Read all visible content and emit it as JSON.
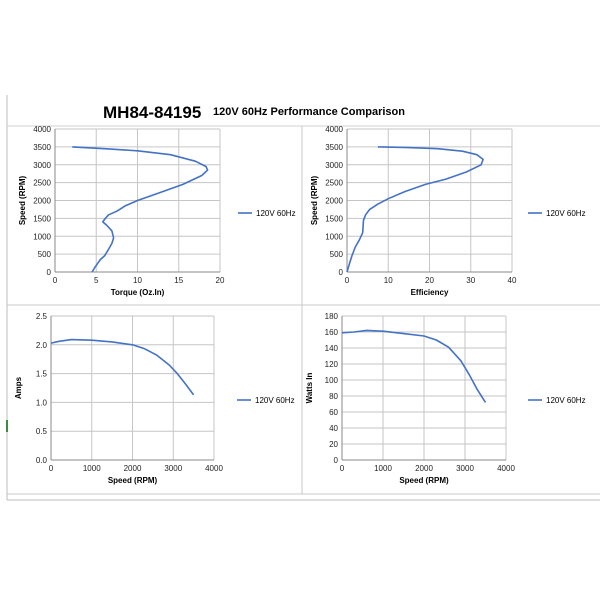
{
  "header": {
    "model": "MH84-84195",
    "subtitle": "120V 60Hz Performance Comparison"
  },
  "chart_data": [
    {
      "type": "line",
      "xlabel": "Torque (Oz.In)",
      "ylabel": "Speed (RPM)",
      "xlim": [
        0,
        20
      ],
      "ylim": [
        0,
        4000
      ],
      "xticks": [
        0,
        5,
        10,
        15,
        20
      ],
      "yticks": [
        0,
        500,
        1000,
        1500,
        2000,
        2500,
        3000,
        3500,
        4000
      ],
      "grid": true,
      "legend_position": "right",
      "series": [
        {
          "name": "120V 60Hz",
          "color": "#4472c4",
          "x": [
            2.1,
            6.0,
            10.0,
            14.0,
            17.0,
            18.3,
            18.5,
            17.8,
            15.5,
            12.5,
            10.0,
            8.5,
            7.5,
            6.5,
            6.1,
            5.8,
            6.3,
            6.9,
            7.1,
            6.9,
            6.4,
            6.0,
            5.5,
            5.2,
            4.9,
            4.5
          ],
          "y": [
            3500,
            3450,
            3390,
            3280,
            3100,
            2950,
            2850,
            2700,
            2450,
            2200,
            2000,
            1850,
            1700,
            1600,
            1500,
            1400,
            1300,
            1150,
            950,
            800,
            600,
            450,
            350,
            250,
            150,
            0
          ]
        }
      ]
    },
    {
      "type": "line",
      "xlabel": "Efficiency",
      "ylabel": "Speed (RPM)",
      "xlim": [
        0,
        40
      ],
      "ylim": [
        0,
        4000
      ],
      "xticks": [
        0,
        10,
        20,
        30,
        40
      ],
      "yticks": [
        0,
        500,
        1000,
        1500,
        2000,
        2500,
        3000,
        3500,
        4000
      ],
      "grid": true,
      "legend_position": "right",
      "series": [
        {
          "name": "120V 60Hz",
          "color": "#4472c4",
          "x": [
            7.5,
            15,
            22,
            28,
            31.5,
            33,
            32.5,
            29,
            24,
            19,
            14,
            10,
            7.5,
            5.5,
            4.5,
            4.0,
            3.8,
            3.0,
            2.0,
            1.2,
            0.5,
            0
          ],
          "y": [
            3500,
            3480,
            3450,
            3380,
            3280,
            3150,
            3000,
            2800,
            2600,
            2450,
            2250,
            2050,
            1900,
            1750,
            1600,
            1450,
            1100,
            900,
            700,
            450,
            200,
            0
          ]
        }
      ]
    },
    {
      "type": "line",
      "xlabel": "Speed (RPM)",
      "ylabel": "Amps",
      "xlim": [
        0,
        4000
      ],
      "ylim": [
        0,
        2.5
      ],
      "xticks": [
        0,
        1000,
        2000,
        3000,
        4000
      ],
      "yticks": [
        "0.0",
        "0.5",
        "1.0",
        "1.5",
        "2.0",
        "2.5"
      ],
      "grid": true,
      "legend_position": "right",
      "series": [
        {
          "name": "120V 60Hz",
          "color": "#4472c4",
          "x": [
            0,
            200,
            500,
            1000,
            1500,
            2000,
            2300,
            2600,
            2900,
            3100,
            3300,
            3500
          ],
          "y": [
            2.03,
            2.06,
            2.09,
            2.08,
            2.05,
            2.0,
            1.93,
            1.82,
            1.65,
            1.5,
            1.32,
            1.13
          ]
        }
      ]
    },
    {
      "type": "line",
      "xlabel": "Speed (RPM)",
      "ylabel": "Watts In",
      "xlim": [
        0,
        4000
      ],
      "ylim": [
        0,
        180
      ],
      "xticks": [
        0,
        1000,
        2000,
        3000,
        4000
      ],
      "yticks": [
        0,
        20,
        40,
        60,
        80,
        100,
        120,
        140,
        160,
        180
      ],
      "grid": true,
      "legend_position": "right",
      "series": [
        {
          "name": "120V 60Hz",
          "color": "#4472c4",
          "x": [
            0,
            300,
            600,
            1000,
            1500,
            2000,
            2300,
            2600,
            2900,
            3100,
            3300,
            3500
          ],
          "y": [
            159,
            160,
            162,
            161,
            158,
            155,
            150,
            141,
            124,
            107,
            88,
            72
          ]
        }
      ]
    }
  ]
}
